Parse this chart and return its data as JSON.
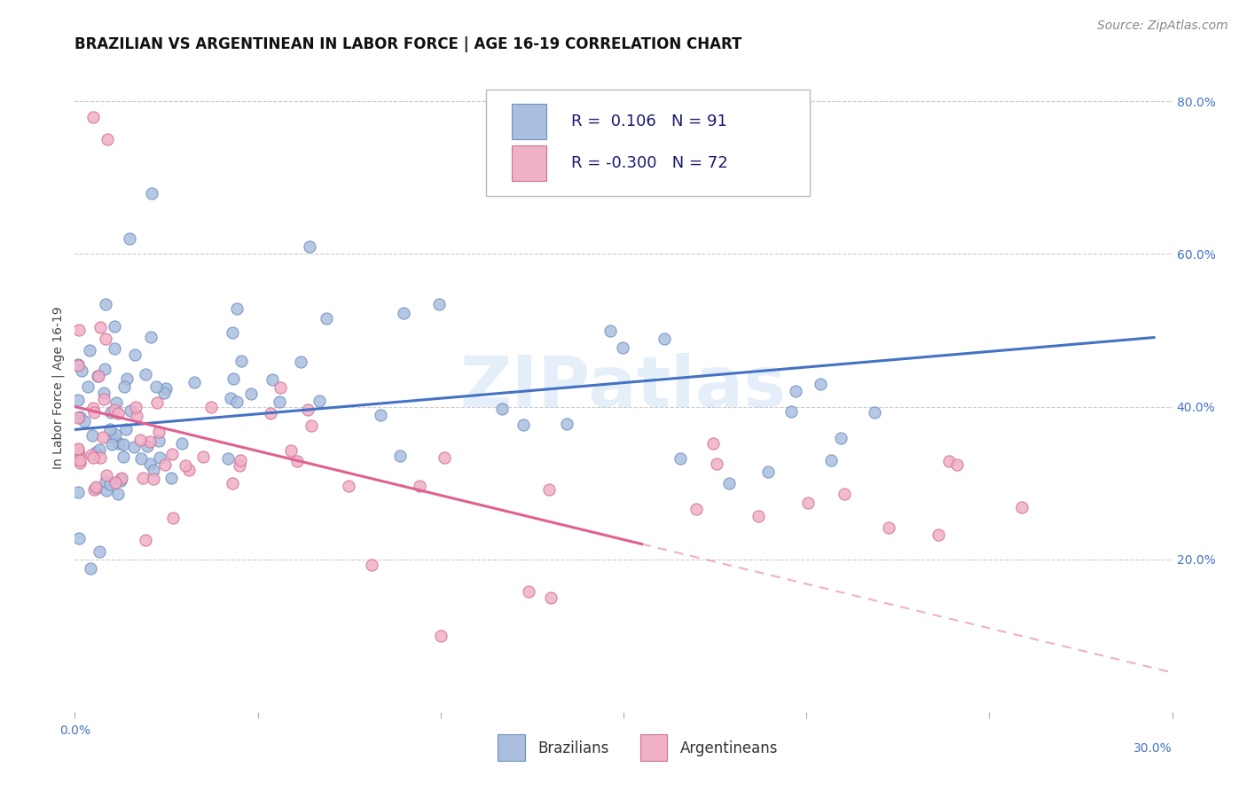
{
  "title": "BRAZILIAN VS ARGENTINEAN IN LABOR FORCE | AGE 16-19 CORRELATION CHART",
  "source": "Source: ZipAtlas.com",
  "ylabel": "In Labor Force | Age 16-19",
  "xlim": [
    0.0,
    0.3
  ],
  "ylim": [
    0.0,
    0.85
  ],
  "right_yticks": [
    0.2,
    0.4,
    0.6,
    0.8
  ],
  "right_yticklabels": [
    "20.0%",
    "40.0%",
    "60.0%",
    "80.0%"
  ],
  "grid_color": "#cccccc",
  "background_color": "#ffffff",
  "watermark": "ZIPatlas",
  "watermark_color": "#aaccee",
  "blue_line_color": "#4472c4",
  "pink_line_color": "#e06090",
  "blue_dot_face": "#aabfdf",
  "blue_dot_edge": "#7090c0",
  "pink_dot_face": "#f0b0c8",
  "pink_dot_edge": "#d07090",
  "legend_R1": "0.106",
  "legend_N1": "91",
  "legend_R2": "-0.300",
  "legend_N2": "72",
  "legend_label1": "Brazilians",
  "legend_label2": "Argentineans",
  "title_fontsize": 12,
  "axis_label_fontsize": 10,
  "tick_fontsize": 10,
  "legend_fontsize": 13,
  "source_fontsize": 10
}
